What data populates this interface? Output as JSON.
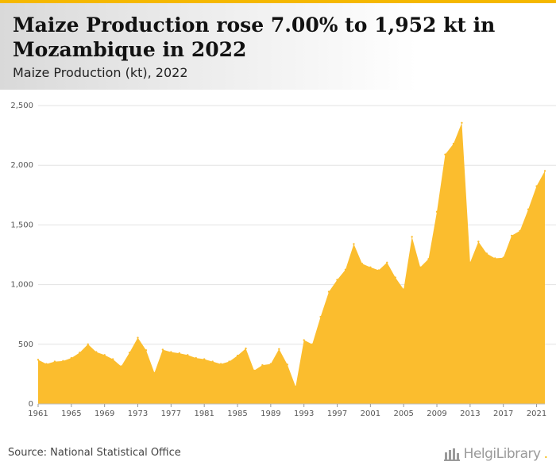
{
  "header": {
    "title": "Maize Production rose 7.00% to 1,952 kt in Mozambique in 2022",
    "subtitle": "Maize Production (kt), 2022"
  },
  "footer": {
    "source": "Source: National Statistical Office",
    "logo_text": "HelgiLibrary",
    "logo_dot": "."
  },
  "colors": {
    "accent": "#f5b800",
    "area": "#fbbd2e"
  },
  "chart_data": {
    "type": "area",
    "title": "Maize Production rose 7.00% to 1,952 kt in Mozambique in 2022",
    "subtitle": "Maize Production (kt), 2022",
    "xlabel": "",
    "ylabel": "",
    "ylim": [
      0,
      2500
    ],
    "yticks": [
      0,
      500,
      1000,
      1500,
      2000,
      2500
    ],
    "ytick_labels": [
      "0",
      "500",
      "1,000",
      "1,500",
      "2,000",
      "2,500"
    ],
    "xticks": [
      1961,
      1965,
      1969,
      1973,
      1977,
      1981,
      1985,
      1989,
      1993,
      1997,
      2001,
      2005,
      2009,
      2013,
      2017,
      2021
    ],
    "grid": true,
    "legend": "none",
    "x": [
      1961,
      1962,
      1963,
      1964,
      1965,
      1966,
      1967,
      1968,
      1969,
      1970,
      1971,
      1972,
      1973,
      1974,
      1975,
      1976,
      1977,
      1978,
      1979,
      1980,
      1981,
      1982,
      1983,
      1984,
      1985,
      1986,
      1987,
      1988,
      1989,
      1990,
      1991,
      1992,
      1993,
      1994,
      1995,
      1996,
      1997,
      1998,
      1999,
      2000,
      2001,
      2002,
      2003,
      2004,
      2005,
      2006,
      2007,
      2008,
      2009,
      2010,
      2011,
      2012,
      2013,
      2014,
      2015,
      2016,
      2017,
      2018,
      2019,
      2020,
      2021,
      2022
    ],
    "series": [
      {
        "values": [
          370,
          335,
          355,
          360,
          385,
          430,
          500,
          435,
          410,
          375,
          315,
          430,
          555,
          450,
          260,
          455,
          435,
          425,
          410,
          385,
          375,
          355,
          335,
          355,
          405,
          465,
          280,
          325,
          335,
          460,
          330,
          145,
          535,
          500,
          730,
          940,
          1040,
          1125,
          1340,
          1175,
          1145,
          1120,
          1185,
          1060,
          960,
          1400,
          1145,
          1215,
          1610,
          2090,
          2180,
          2355,
          1185,
          1360,
          1260,
          1220,
          1225,
          1410,
          1450,
          1630,
          1825,
          1952
        ]
      }
    ]
  }
}
